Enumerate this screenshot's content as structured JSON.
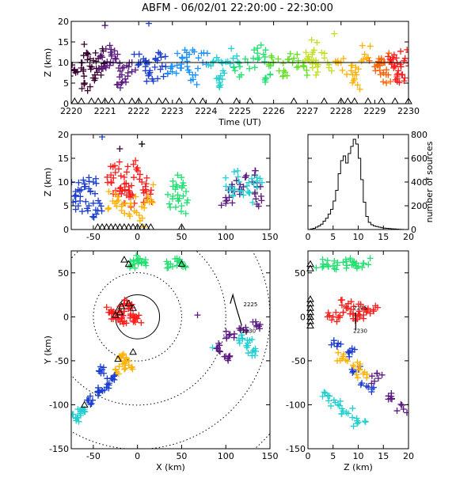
{
  "figure": {
    "title": "ABFM - 06/02/01 22:20:00 - 22:30:00",
    "rainbow": [
      "#3a0030",
      "#5a1a80",
      "#1a3cd0",
      "#1a90ff",
      "#20d0d0",
      "#20e070",
      "#60e020",
      "#c0e020",
      "#ffb000",
      "#ff6000",
      "#ff1a1a"
    ]
  },
  "chart_data": [
    {
      "id": "time-height",
      "type": "scatter",
      "xlabel": "Time (UT)",
      "ylabel": "Z (km)",
      "xlim": [
        2220,
        2230
      ],
      "ylim": [
        0,
        20
      ],
      "xticks": [
        "2220",
        "2221",
        "2222",
        "2223",
        "2224",
        "2225",
        "2226",
        "2227",
        "2228",
        "2229",
        "2230"
      ],
      "yticks": [
        "0",
        "5",
        "10",
        "15",
        "20"
      ],
      "reference_line_z": 10,
      "series": [
        {
          "color": "#3a0030",
          "x": [
            2220.1,
            2220.3,
            2220.5,
            2220.7,
            2220.9,
            2220.4,
            2220.8
          ],
          "y": [
            8,
            10,
            12,
            7,
            9,
            5,
            11
          ]
        },
        {
          "color": "#5a1a80",
          "x": [
            2221.0,
            2221.3,
            2221.5,
            2221.8,
            2221.2,
            2221.6
          ],
          "y": [
            9,
            11,
            7,
            10,
            12,
            6
          ]
        },
        {
          "color": "#1a3cd0",
          "x": [
            2222.0,
            2222.2,
            2222.5,
            2222.8,
            2222.4
          ],
          "y": [
            10,
            8,
            11,
            9,
            6
          ]
        },
        {
          "color": "#1a90ff",
          "x": [
            2223.0,
            2223.3,
            2223.6,
            2223.9,
            2223.5
          ],
          "y": [
            9,
            11,
            7,
            10,
            12
          ]
        },
        {
          "color": "#20d0d0",
          "x": [
            2224.2,
            2224.5,
            2224.8,
            2224.4
          ],
          "y": [
            10,
            8,
            11,
            6
          ]
        },
        {
          "color": "#20e070",
          "x": [
            2225.0,
            2225.4,
            2225.7,
            2225.9
          ],
          "y": [
            9,
            11,
            12,
            7
          ]
        },
        {
          "color": "#60e020",
          "x": [
            2226.0,
            2226.3,
            2226.6,
            2226.9
          ],
          "y": [
            10,
            8,
            11,
            9
          ]
        },
        {
          "color": "#c0e020",
          "x": [
            2227.0,
            2227.3,
            2227.6,
            2227.2
          ],
          "y": [
            11,
            9,
            10,
            13
          ]
        },
        {
          "color": "#ffb000",
          "x": [
            2228.0,
            2228.3,
            2228.7,
            2228.4
          ],
          "y": [
            10,
            8,
            12,
            6
          ]
        },
        {
          "color": "#ff6000",
          "x": [
            2229.0,
            2229.2,
            2229.4,
            2229.3
          ],
          "y": [
            9,
            11,
            7,
            10
          ]
        },
        {
          "color": "#ff1a1a",
          "x": [
            2229.5,
            2229.7,
            2229.9,
            2229.6,
            2229.8
          ],
          "y": [
            10,
            8,
            11,
            9,
            7
          ]
        }
      ],
      "outliers": [
        {
          "x": 2222.3,
          "y": 19.5,
          "color": "#1a3cd0"
        },
        {
          "x": 2221.0,
          "y": 19,
          "color": "#5a1a80"
        },
        {
          "x": 2227.8,
          "y": 17,
          "color": "#c0e020"
        }
      ],
      "stations_x": [
        2220.1,
        2220.3,
        2220.6,
        2220.8,
        2221.0,
        2221.2,
        2221.5,
        2221.8,
        2222.0,
        2222.3,
        2222.6,
        2222.8,
        2223.2,
        2223.6,
        2223.9,
        2224.4,
        2224.9,
        2225.3,
        2226.6,
        2227.5,
        2228.0,
        2228.2,
        2228.4,
        2228.8,
        2229.2,
        2229.6,
        2230.0
      ]
    },
    {
      "id": "x-z-projection",
      "type": "scatter",
      "ylabel": "Z (km)",
      "xlim": [
        -75,
        150
      ],
      "ylim": [
        0,
        20
      ],
      "xticks": [
        "-50",
        "0",
        "50",
        "100",
        "150"
      ],
      "yticks": [
        "0",
        "5",
        "10",
        "15",
        "20"
      ],
      "series": [
        {
          "color": "#1a3cd0",
          "x": [
            -70,
            -65,
            -60,
            -55,
            -50,
            -45
          ],
          "y": [
            8,
            6,
            9,
            5,
            10,
            4
          ]
        },
        {
          "color": "#ff1a1a",
          "x": [
            -30,
            -25,
            -20,
            -15,
            -10,
            -5,
            0,
            5,
            10
          ],
          "y": [
            10,
            12,
            8,
            11,
            9,
            7,
            13,
            10,
            8
          ]
        },
        {
          "color": "#ffb000",
          "x": [
            -28,
            -18,
            -8,
            2,
            12
          ],
          "y": [
            6,
            4,
            5,
            3,
            7
          ]
        },
        {
          "color": "#20e070",
          "x": [
            40,
            45,
            50,
            55
          ],
          "y": [
            7,
            9,
            5,
            8
          ]
        },
        {
          "color": "#5a1a80",
          "x": [
            100,
            110,
            120,
            130,
            140
          ],
          "y": [
            6,
            8,
            9,
            10,
            7
          ]
        },
        {
          "color": "#20d0d0",
          "x": [
            105,
            115,
            125,
            135
          ],
          "y": [
            9,
            10,
            8,
            11
          ]
        }
      ],
      "outliers": [
        {
          "x": -40,
          "y": 19.5,
          "color": "#1a3cd0"
        },
        {
          "x": -20,
          "y": 17,
          "color": "#3a0030"
        },
        {
          "x": 5,
          "y": 18,
          "color": "#000000"
        }
      ],
      "stations_x": [
        -45,
        -40,
        -35,
        -30,
        -25,
        -20,
        -15,
        -10,
        -5,
        0,
        5,
        10,
        15,
        50
      ]
    },
    {
      "id": "height-histogram",
      "type": "bar",
      "xlim": [
        0,
        20
      ],
      "ylim": [
        0,
        800
      ],
      "ylabel_right": "number of sources",
      "xticks": [
        "0",
        "5",
        "10",
        "15",
        "20"
      ],
      "yticks": [
        "0",
        "200",
        "400",
        "600",
        "800"
      ],
      "bin_edges": [
        0,
        0.5,
        1,
        1.5,
        2,
        2.5,
        3,
        3.5,
        4,
        4.5,
        5,
        5.5,
        6,
        6.5,
        7,
        7.5,
        8,
        8.5,
        9,
        9.5,
        10,
        10.5,
        11,
        11.5,
        12,
        12.5,
        13,
        13.5,
        14,
        14.5,
        15,
        15.5,
        16,
        16.5,
        17,
        17.5,
        18,
        18.5,
        19,
        19.5,
        20
      ],
      "counts": [
        0,
        5,
        10,
        20,
        30,
        45,
        70,
        95,
        130,
        170,
        240,
        330,
        470,
        580,
        620,
        560,
        640,
        700,
        760,
        720,
        600,
        420,
        230,
        110,
        60,
        40,
        30,
        25,
        20,
        15,
        12,
        10,
        8,
        6,
        5,
        3,
        2,
        1,
        0,
        0
      ]
    },
    {
      "id": "plan-view",
      "type": "scatter",
      "xlabel": "X (km)",
      "ylabel": "Y (km)",
      "xlim": [
        -75,
        150
      ],
      "ylim": [
        -150,
        75
      ],
      "xticks": [
        "-50",
        "0",
        "50",
        "100",
        "150"
      ],
      "yticks": [
        "-150",
        "-100",
        "-50",
        "0",
        "50"
      ],
      "range_rings_km": [
        25,
        50,
        100,
        150,
        200
      ],
      "track_labels": [
        "2225",
        "2230"
      ],
      "series": [
        {
          "color": "#ff1a1a",
          "x": [
            -25,
            -20,
            -15,
            -10,
            -5,
            0,
            -30,
            -15
          ],
          "y": [
            0,
            5,
            -5,
            10,
            3,
            -2,
            8,
            15
          ]
        },
        {
          "color": "#ffb000",
          "x": [
            -20,
            -15,
            -10,
            -25
          ],
          "y": [
            -45,
            -50,
            -55,
            -60
          ]
        },
        {
          "color": "#1a3cd0",
          "x": [
            -40,
            -30,
            -35,
            -55,
            -45
          ],
          "y": [
            -60,
            -70,
            -80,
            -95,
            -85
          ]
        },
        {
          "color": "#20e070",
          "x": [
            -5,
            0,
            5,
            35,
            45,
            50
          ],
          "y": [
            60,
            65,
            62,
            60,
            63,
            58
          ]
        },
        {
          "color": "#20d0d0",
          "x": [
            -60,
            -65,
            -70,
            115,
            125,
            130
          ],
          "y": [
            -105,
            -110,
            -115,
            -25,
            -30,
            -40
          ]
        },
        {
          "color": "#5a1a80",
          "x": [
            105,
            120,
            135,
            100,
            90
          ],
          "y": [
            -20,
            -15,
            -10,
            -45,
            -35
          ]
        }
      ],
      "outliers": [
        {
          "x": 68,
          "y": 2,
          "color": "#5a1a80"
        },
        {
          "x": 85,
          "y": -35,
          "color": "#20d0d0"
        }
      ],
      "stations": [
        [
          -18,
          12
        ],
        [
          -10,
          15
        ],
        [
          -5,
          10
        ],
        [
          -25,
          2
        ],
        [
          -20,
          5
        ],
        [
          -15,
          65
        ],
        [
          -10,
          60
        ],
        [
          50,
          60
        ],
        [
          -5,
          -40
        ],
        [
          -22,
          -48
        ],
        [
          -60,
          -100
        ]
      ]
    },
    {
      "id": "z-y-projection",
      "type": "scatter",
      "xlabel": "Z (km)",
      "xlim": [
        0,
        20
      ],
      "ylim": [
        -150,
        75
      ],
      "xticks": [
        "0",
        "5",
        "10",
        "15",
        "20"
      ],
      "yticks": [
        "-150",
        "-100",
        "-50",
        "0",
        "50"
      ],
      "track_labels": [
        "2225",
        "2230"
      ],
      "series": [
        {
          "color": "#20e070",
          "x": [
            3,
            5,
            7,
            9,
            11
          ],
          "y": [
            60,
            58,
            62,
            59,
            61
          ]
        },
        {
          "color": "#ff1a1a",
          "x": [
            5,
            7,
            9,
            11,
            13,
            8,
            10
          ],
          "y": [
            0,
            5,
            -2,
            10,
            8,
            15,
            3
          ]
        },
        {
          "color": "#1a3cd0",
          "x": [
            6,
            8,
            10,
            12
          ],
          "y": [
            -30,
            -40,
            -60,
            -80
          ]
        },
        {
          "color": "#ffb000",
          "x": [
            7,
            9,
            11
          ],
          "y": [
            -45,
            -55,
            -65
          ]
        },
        {
          "color": "#20d0d0",
          "x": [
            4,
            6,
            8,
            10
          ],
          "y": [
            -90,
            -100,
            -110,
            -120
          ]
        },
        {
          "color": "#5a1a80",
          "x": [
            14,
            16,
            19
          ],
          "y": [
            -70,
            -90,
            -105
          ]
        }
      ],
      "stations_y": [
        20,
        15,
        10,
        5,
        0,
        -5,
        -10,
        60,
        55
      ]
    }
  ]
}
